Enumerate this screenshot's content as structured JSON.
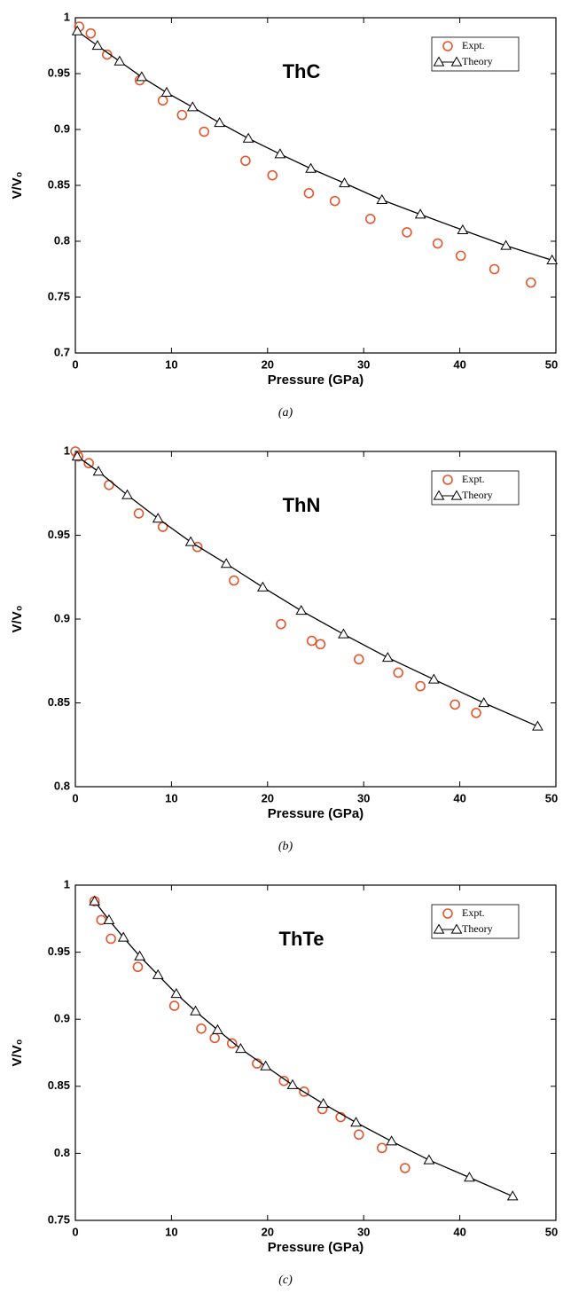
{
  "chart_data": [
    {
      "type": "line",
      "title": "ThC",
      "caption": "(a)",
      "x_label": "Pressure (GPa)",
      "y_label": "V/V₀",
      "xlim": [
        0,
        50
      ],
      "xticks": [
        0,
        10,
        20,
        30,
        40,
        50
      ],
      "ylim": [
        0.7,
        1
      ],
      "yticks": [
        0.7,
        0.75,
        0.8,
        0.85,
        0.9,
        0.95,
        1
      ],
      "grid": false,
      "legend": "upper right",
      "series": [
        {
          "name": "Expt.",
          "color": "#e4572e",
          "marker": "circle",
          "line": false,
          "x": [
            0.4,
            1.6,
            3.3,
            6.7,
            9.1,
            11.1,
            13.4,
            17.7,
            20.5,
            24.3,
            27.0,
            30.7,
            34.5,
            37.7,
            40.1,
            43.6,
            47.4
          ],
          "values": [
            0.992,
            0.986,
            0.967,
            0.944,
            0.926,
            0.913,
            0.898,
            0.872,
            0.859,
            0.843,
            0.836,
            0.82,
            0.808,
            0.798,
            0.787,
            0.775,
            0.763
          ]
        },
        {
          "name": "Theory",
          "color": "#000000",
          "marker": "triangle",
          "line": true,
          "x": [
            0.2,
            2.3,
            4.6,
            6.9,
            9.5,
            12.2,
            15.0,
            18.0,
            21.3,
            24.5,
            28.0,
            31.9,
            35.9,
            40.3,
            44.8,
            49.6
          ],
          "values": [
            0.988,
            0.975,
            0.961,
            0.947,
            0.933,
            0.92,
            0.906,
            0.892,
            0.878,
            0.865,
            0.852,
            0.837,
            0.824,
            0.81,
            0.796,
            0.783
          ]
        }
      ]
    },
    {
      "type": "line",
      "title": "ThN",
      "caption": "(b)",
      "x_label": "Pressure (GPa)",
      "y_label": "V/V₀",
      "xlim": [
        0,
        50
      ],
      "xticks": [
        0,
        10,
        20,
        30,
        40,
        50
      ],
      "ylim": [
        0.8,
        1
      ],
      "yticks": [
        0.8,
        0.85,
        0.9,
        0.95,
        1
      ],
      "grid": false,
      "legend": "upper right",
      "series": [
        {
          "name": "Expt.",
          "color": "#e4572e",
          "marker": "circle",
          "line": false,
          "x": [
            0,
            0.3,
            1.4,
            3.5,
            6.6,
            9.1,
            12.7,
            16.5,
            21.4,
            24.6,
            25.5,
            29.5,
            33.6,
            35.9,
            39.5,
            41.7
          ],
          "values": [
            1.0,
            0.997,
            0.993,
            0.98,
            0.963,
            0.955,
            0.943,
            0.923,
            0.897,
            0.887,
            0.885,
            0.876,
            0.868,
            0.86,
            0.849,
            0.844
          ]
        },
        {
          "name": "Theory",
          "color": "#000000",
          "marker": "triangle",
          "line": true,
          "x": [
            0.2,
            2.4,
            5.4,
            8.6,
            12.0,
            15.7,
            19.5,
            23.5,
            27.9,
            32.5,
            37.3,
            42.5,
            48.1
          ],
          "values": [
            0.997,
            0.988,
            0.974,
            0.96,
            0.946,
            0.933,
            0.919,
            0.905,
            0.891,
            0.877,
            0.864,
            0.85,
            0.836
          ]
        }
      ]
    },
    {
      "type": "line",
      "title": "ThTe",
      "caption": "(c)",
      "x_label": "Pressure (GPa)",
      "y_label": "V/V₀",
      "xlim": [
        0,
        50
      ],
      "xticks": [
        0,
        10,
        20,
        30,
        40,
        50
      ],
      "ylim": [
        0.75,
        1
      ],
      "yticks": [
        0.75,
        0.8,
        0.85,
        0.9,
        0.95,
        1
      ],
      "grid": false,
      "legend": "upper right",
      "series": [
        {
          "name": "Expt.",
          "color": "#e4572e",
          "marker": "circle",
          "line": false,
          "x": [
            2.0,
            2.7,
            3.7,
            6.5,
            10.3,
            13.1,
            14.5,
            16.3,
            18.9,
            21.7,
            23.8,
            25.7,
            27.6,
            29.5,
            31.9,
            34.3
          ],
          "values": [
            0.988,
            0.974,
            0.96,
            0.939,
            0.91,
            0.893,
            0.886,
            0.882,
            0.867,
            0.854,
            0.846,
            0.833,
            0.827,
            0.814,
            0.804,
            0.789
          ]
        },
        {
          "name": "Theory",
          "color": "#000000",
          "marker": "triangle",
          "line": true,
          "x": [
            2.0,
            3.5,
            5.0,
            6.7,
            8.6,
            10.5,
            12.5,
            14.8,
            17.2,
            19.8,
            22.6,
            25.8,
            29.2,
            32.9,
            36.8,
            41.0,
            45.5
          ],
          "values": [
            0.988,
            0.974,
            0.961,
            0.947,
            0.933,
            0.919,
            0.906,
            0.892,
            0.878,
            0.865,
            0.851,
            0.837,
            0.823,
            0.809,
            0.795,
            0.782,
            0.768
          ]
        }
      ]
    }
  ]
}
